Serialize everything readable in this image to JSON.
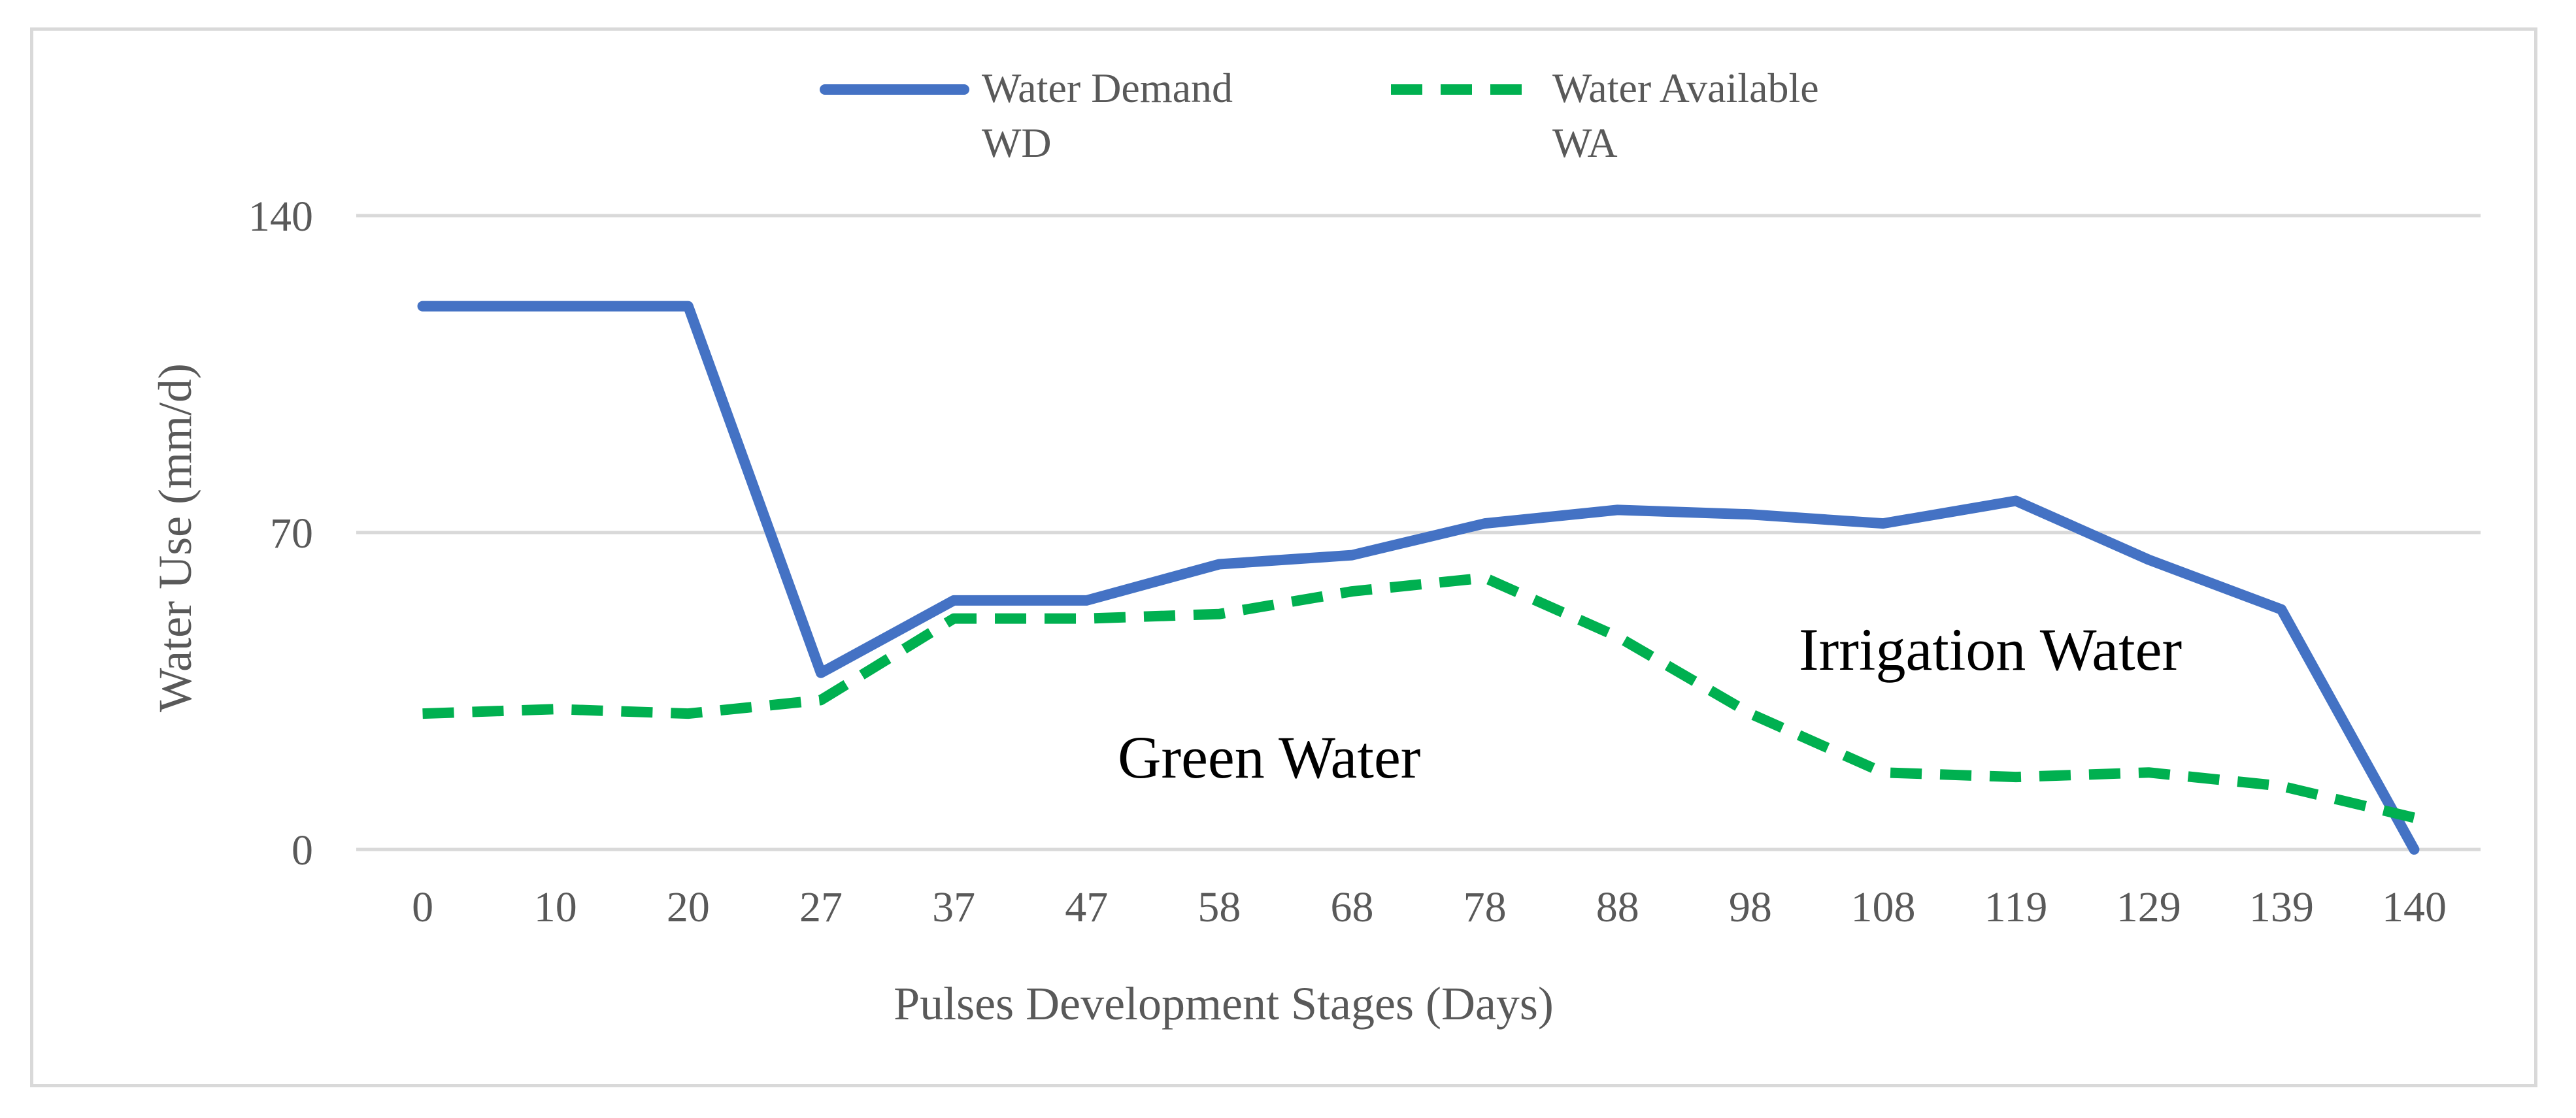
{
  "chart_data": {
    "type": "line",
    "title": "",
    "xlabel": "Pulses Development Stages (Days)",
    "ylabel": "Water Use (mm/d)",
    "categories": [
      "0",
      "10",
      "20",
      "27",
      "37",
      "47",
      "58",
      "68",
      "78",
      "88",
      "98",
      "108",
      "119",
      "129",
      "139",
      "140"
    ],
    "yticks": [
      "0",
      "70",
      "140"
    ],
    "ylim": [
      0,
      140
    ],
    "grid": true,
    "legend_position": "top-center",
    "series": [
      {
        "name": "Water Demand WD",
        "legend_line1": "Water Demand",
        "legend_line2": "WD",
        "color": "#4472c4",
        "style": "solid",
        "values": [
          120,
          120,
          120,
          39,
          55,
          55,
          63,
          65,
          72,
          75,
          74,
          72,
          77,
          64,
          53,
          0
        ]
      },
      {
        "name": "Water Available WA",
        "legend_line1": "Water Available",
        "legend_line2": "WA",
        "color": "#00b050",
        "style": "dashed",
        "values": [
          30,
          31,
          30,
          33,
          51,
          51,
          52,
          57,
          60,
          47,
          30,
          17,
          16,
          17,
          14,
          7
        ]
      }
    ],
    "annotations": {
      "green_water": "Green Water",
      "irrigation_water": "Irrigation Water"
    }
  }
}
